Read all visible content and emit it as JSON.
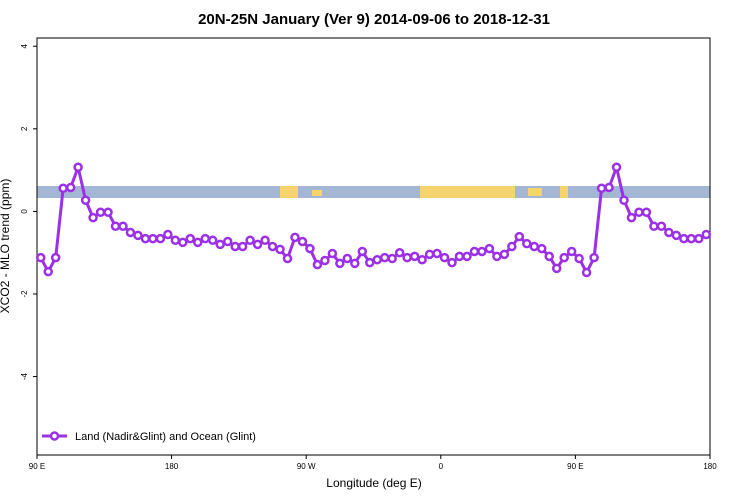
{
  "chart_data": {
    "type": "line",
    "title": "20N-25N January (Ver 9)   2014-09-06 to 2018-12-31",
    "x_label": "Longitude (deg E)",
    "y_label": "XCO2 - MLO trend (ppm)",
    "x": [
      92.5,
      97.5,
      102.5,
      107.5,
      112.5,
      117.5,
      122.5,
      127.5,
      132.5,
      137.5,
      142.5,
      147.5,
      152.5,
      157.5,
      162.5,
      167.5,
      172.5,
      177.5,
      182.5,
      187.5,
      192.5,
      197.5,
      202.5,
      207.5,
      212.5,
      217.5,
      222.5,
      227.5,
      232.5,
      237.5,
      242.5,
      247.5,
      252.5,
      257.5,
      262.5,
      267.5,
      272.5,
      277.5,
      282.5,
      287.5,
      292.5,
      297.5,
      302.5,
      307.5,
      312.5,
      317.5,
      322.5,
      327.5,
      332.5,
      337.5,
      342.5,
      347.5,
      352.5,
      357.5,
      362.5,
      367.5,
      372.5,
      377.5,
      382.5,
      387.5,
      392.5,
      397.5,
      402.5,
      407.5,
      412.5,
      417.5,
      422.5,
      427.5,
      432.5,
      437.5,
      442.5,
      447.5,
      452.5,
      457.5,
      462.5,
      467.5,
      472.5,
      477.5,
      482.5,
      487.5,
      492.5,
      497.5,
      502.5,
      507.5,
      512.5,
      517.5,
      522.5,
      527.5,
      532.5,
      537.5
    ],
    "series": [
      {
        "name": "Land (Nadir&Glint) and Ocean (Glint)",
        "color": "#9b30e6",
        "values": [
          -1.12,
          -1.46,
          -1.12,
          0.56,
          0.58,
          1.07,
          0.27,
          -0.15,
          -0.02,
          -0.02,
          -0.36,
          -0.36,
          -0.51,
          -0.58,
          -0.66,
          -0.66,
          -0.66,
          -0.56,
          -0.7,
          -0.75,
          -0.66,
          -0.75,
          -0.66,
          -0.7,
          -0.8,
          -0.73,
          -0.85,
          -0.85,
          -0.7,
          -0.8,
          -0.7,
          -0.85,
          -0.92,
          -1.14,
          -0.63,
          -0.73,
          -0.9,
          -1.29,
          -1.19,
          -1.02,
          -1.26,
          -1.14,
          -1.26,
          -0.97,
          -1.24,
          -1.17,
          -1.12,
          -1.14,
          -1.0,
          -1.12,
          -1.09,
          -1.17,
          -1.04,
          -1.02,
          -1.12,
          -1.24,
          -1.09,
          -1.09,
          -0.97,
          -0.97,
          -0.9,
          -1.09,
          -1.04,
          -0.85,
          -0.61,
          -0.78,
          -0.85,
          -0.9,
          -1.09,
          -1.38,
          -1.12,
          -0.97,
          -1.14,
          -1.48,
          -1.12,
          0.56,
          0.58,
          1.07,
          0.27,
          -0.15,
          -0.02,
          -0.02,
          -0.36,
          -0.36,
          -0.51,
          -0.58,
          -0.66,
          -0.66,
          -0.66,
          -0.56
        ]
      }
    ],
    "xlim": [
      90,
      540
    ],
    "ylim": [
      -5.9,
      4.2
    ],
    "xticks": [
      {
        "value": 90,
        "label": "90 E"
      },
      180,
      {
        "value": 270,
        "label": "90 W"
      },
      {
        "value": 360,
        "label": "0"
      },
      {
        "value": 450,
        "label": "90 E"
      },
      {
        "value": 540,
        "label": "180"
      }
    ],
    "yticks": [
      -4,
      -2,
      0,
      2,
      4
    ],
    "legend": "bottom-left"
  }
}
